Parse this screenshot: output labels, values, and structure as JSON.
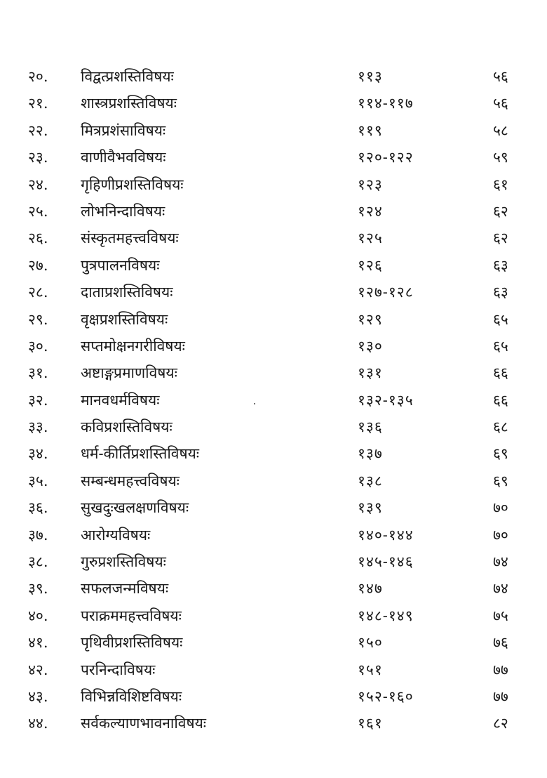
{
  "toc": {
    "entries": [
      {
        "number": "२०.",
        "title": "विद्वत्प्रशस्तिविषयः",
        "verses": "११३",
        "page": "५६"
      },
      {
        "number": "२१.",
        "title": "शास्त्रप्रशस्तिविषयः",
        "verses": "११४-११७",
        "page": "५६"
      },
      {
        "number": "२२.",
        "title": "मित्रप्रशंसाविषयः",
        "verses": "११९",
        "page": "५८"
      },
      {
        "number": "२३.",
        "title": "वाणीवैभवविषयः",
        "verses": "१२०-१२२",
        "page": "५९"
      },
      {
        "number": "२४.",
        "title": "गृहिणीप्रशस्तिविषयः",
        "verses": "१२३",
        "page": "६१"
      },
      {
        "number": "२५.",
        "title": "लोभनिन्दाविषयः",
        "verses": "१२४",
        "page": "६२"
      },
      {
        "number": "२६.",
        "title": "संस्कृतमहत्त्वविषयः",
        "verses": "१२५",
        "page": "६२"
      },
      {
        "number": "२७.",
        "title": "पुत्रपालनविषयः",
        "verses": "१२६",
        "page": "६३"
      },
      {
        "number": "२८.",
        "title": "दाताप्रशस्तिविषयः",
        "verses": "१२७-१२८",
        "page": "६३"
      },
      {
        "number": "२९.",
        "title": "वृक्षप्रशस्तिविषयः",
        "verses": "१२९",
        "page": "६५"
      },
      {
        "number": "३०.",
        "title": "सप्तमोक्षनगरीविषयः",
        "verses": "१३०",
        "page": "६५"
      },
      {
        "number": "३१.",
        "title": "अष्टाङ्गप्रमाणविषयः",
        "verses": "१३१",
        "page": "६६"
      },
      {
        "number": "३२.",
        "title": "मानवधर्मविषयः",
        "verses": "१३२-१३५",
        "page": "६६"
      },
      {
        "number": "३३.",
        "title": "कविप्रशस्तिविषयः",
        "verses": "१३६",
        "page": "६८"
      },
      {
        "number": "३४.",
        "title": "धर्म-कीर्तिप्रशस्तिविषयः",
        "verses": "१३७",
        "page": "६९"
      },
      {
        "number": "३५.",
        "title": "सम्बन्धमहत्त्वविषयः",
        "verses": "१३८",
        "page": "६९"
      },
      {
        "number": "३६.",
        "title": "सुखदुःखलक्षणविषयः",
        "verses": "१३९",
        "page": "७०"
      },
      {
        "number": "३७.",
        "title": "आरोग्यविषयः",
        "verses": "१४०-१४४",
        "page": "७०"
      },
      {
        "number": "३८.",
        "title": "गुरुप्रशस्तिविषयः",
        "verses": "१४५-१४६",
        "page": "७४"
      },
      {
        "number": "३९.",
        "title": "सफलजन्मविषयः",
        "verses": "१४७",
        "page": "७४"
      },
      {
        "number": "४०.",
        "title": "पराक्रममहत्त्वविषयः",
        "verses": "१४८-१४९",
        "page": "७५"
      },
      {
        "number": "४१.",
        "title": "पृथिवीप्रशस्तिविषयः",
        "verses": "१५०",
        "page": "७६"
      },
      {
        "number": "४२.",
        "title": "परनिन्दाविषयः",
        "verses": "१५१",
        "page": "७७"
      },
      {
        "number": "४३.",
        "title": "विभिन्नविशिष्टविषयः",
        "verses": "१५२-१६०",
        "page": "७७"
      },
      {
        "number": "४४.",
        "title": "सर्वकल्याणभावनाविषयः",
        "verses": "१६१",
        "page": "८२"
      }
    ]
  }
}
